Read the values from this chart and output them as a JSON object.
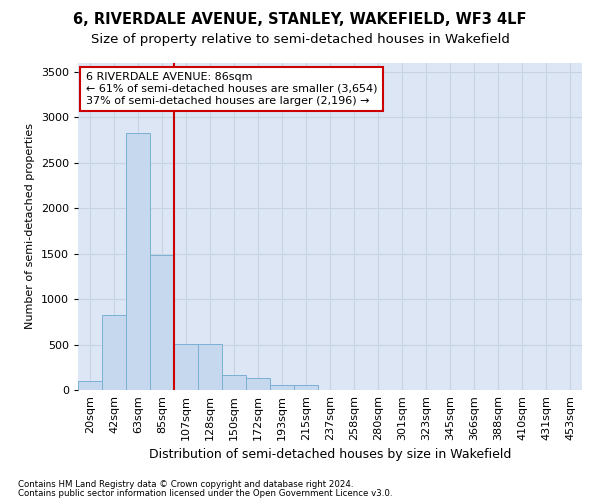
{
  "title": "6, RIVERDALE AVENUE, STANLEY, WAKEFIELD, WF3 4LF",
  "subtitle": "Size of property relative to semi-detached houses in Wakefield",
  "xlabel": "Distribution of semi-detached houses by size in Wakefield",
  "ylabel": "Number of semi-detached properties",
  "footnote1": "Contains HM Land Registry data © Crown copyright and database right 2024.",
  "footnote2": "Contains public sector information licensed under the Open Government Licence v3.0.",
  "bin_labels": [
    "20sqm",
    "42sqm",
    "63sqm",
    "85sqm",
    "107sqm",
    "128sqm",
    "150sqm",
    "172sqm",
    "193sqm",
    "215sqm",
    "237sqm",
    "258sqm",
    "280sqm",
    "301sqm",
    "323sqm",
    "345sqm",
    "366sqm",
    "388sqm",
    "410sqm",
    "431sqm",
    "453sqm"
  ],
  "bar_values": [
    95,
    820,
    2820,
    1480,
    510,
    510,
    165,
    130,
    50,
    50,
    0,
    0,
    0,
    0,
    0,
    0,
    0,
    0,
    0,
    0,
    0
  ],
  "bar_color": "#c5d8ee",
  "bar_edge_color": "#7aafd4",
  "grid_color": "#c8d4e4",
  "background_color": "#dce6f4",
  "vline_color": "#cc0000",
  "annotation_text": "6 RIVERDALE AVENUE: 86sqm\n← 61% of semi-detached houses are smaller (3,654)\n37% of semi-detached houses are larger (2,196) →",
  "annotation_box_color": "#ffffff",
  "annotation_box_edge": "#cc0000",
  "ylim": [
    0,
    3600
  ],
  "yticks": [
    0,
    500,
    1000,
    1500,
    2000,
    2500,
    3000,
    3500
  ],
  "title_fontsize": 10.5,
  "subtitle_fontsize": 9.5,
  "ylabel_fontsize": 8,
  "xlabel_fontsize": 9,
  "tick_fontsize": 8,
  "annot_fontsize": 8
}
